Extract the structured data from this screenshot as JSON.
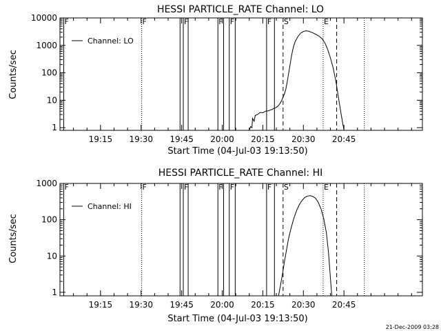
{
  "footer_timestamp": "21-Dec-2009 03:28",
  "chart_data": [
    {
      "type": "line",
      "title": "HESSI PARTICLE_RATE Channel: LO",
      "xlabel": "Start Time (04-Jul-03 19:13:50)",
      "ylabel": "Counts/sec",
      "y_scale": "log",
      "xlim": [
        -10,
        124
      ],
      "ylim": [
        0.8,
        10000
      ],
      "x_ticks": [
        {
          "v": 5,
          "label": "19:15"
        },
        {
          "v": 20,
          "label": "19:30"
        },
        {
          "v": 35,
          "label": "19:45"
        },
        {
          "v": 50,
          "label": "20:00"
        },
        {
          "v": 65,
          "label": "20:15"
        },
        {
          "v": 80,
          "label": "20:30"
        },
        {
          "v": 95,
          "label": "20:45"
        }
      ],
      "y_ticks": [
        {
          "v": 1,
          "label": "1"
        },
        {
          "v": 10,
          "label": "10"
        },
        {
          "v": 100,
          "label": "100"
        },
        {
          "v": 1000,
          "label": "1000"
        },
        {
          "v": 10000,
          "label": "10000"
        }
      ],
      "legend": {
        "position": "top-left",
        "entries": [
          "Channel: LO"
        ]
      },
      "markers": [
        {
          "x": -8.6,
          "style": "solid",
          "label": "F"
        },
        {
          "x": 20.2,
          "style": "dotted",
          "label": "F"
        },
        {
          "x": 34.4,
          "style": "solid",
          "label": ""
        },
        {
          "x": 35.6,
          "style": "solid",
          "label": "F"
        },
        {
          "x": 37.4,
          "style": "solid",
          "label": ""
        },
        {
          "x": 48.4,
          "style": "solid",
          "label": "F"
        },
        {
          "x": 50.5,
          "style": "solid",
          "label": ""
        },
        {
          "x": 52.6,
          "style": "solid",
          "label": "F"
        },
        {
          "x": 54.8,
          "style": "solid",
          "label": ""
        },
        {
          "x": 66.4,
          "style": "solid",
          "label": "F"
        },
        {
          "x": 69.3,
          "style": "solid",
          "label": ""
        },
        {
          "x": 72.5,
          "style": "dashed",
          "label": "S"
        },
        {
          "x": 87.3,
          "style": "dotted",
          "label": "E"
        },
        {
          "x": 92.3,
          "style": "dashed",
          "label": ""
        },
        {
          "x": 102.5,
          "style": "dotted",
          "label": ""
        }
      ],
      "series": [
        {
          "name": "Channel: LO",
          "x": [
            60,
            60.5,
            61,
            61.2,
            61.8,
            62.2,
            63,
            64,
            65,
            66,
            67,
            68,
            68.5,
            69,
            69.5,
            70,
            70.5,
            71,
            71.5,
            72,
            72.5,
            73,
            73.5,
            74,
            74.5,
            75,
            75.5,
            76,
            76.5,
            77,
            78,
            79,
            80,
            81,
            82,
            83,
            84,
            85,
            86,
            87,
            88,
            89,
            90,
            91,
            92,
            93,
            94,
            95
          ],
          "values": [
            0.8,
            1.1,
            1.0,
            2.2,
            1.7,
            2.8,
            3.0,
            3.6,
            3.5,
            4.0,
            4.1,
            4.5,
            4.6,
            5.0,
            5.2,
            5.5,
            6.0,
            6.8,
            8.0,
            10,
            13,
            17,
            25,
            45,
            90,
            180,
            350,
            650,
            1000,
            1400,
            2100,
            2800,
            3200,
            3400,
            3250,
            3000,
            2700,
            2400,
            2100,
            1700,
            1200,
            700,
            350,
            150,
            50,
            12,
            3,
            0.8
          ]
        }
      ]
    },
    {
      "type": "line",
      "title": "HESSI PARTICLE_RATE Channel: HI",
      "xlabel": "Start Time (04-Jul-03 19:13:50)",
      "ylabel": "Counts/sec",
      "y_scale": "log",
      "xlim": [
        -10,
        124
      ],
      "ylim": [
        0.8,
        1000
      ],
      "x_ticks": [
        {
          "v": 5,
          "label": "19:15"
        },
        {
          "v": 20,
          "label": "19:30"
        },
        {
          "v": 35,
          "label": "19:45"
        },
        {
          "v": 50,
          "label": "20:00"
        },
        {
          "v": 65,
          "label": "20:15"
        },
        {
          "v": 80,
          "label": "20:30"
        },
        {
          "v": 95,
          "label": "20:45"
        }
      ],
      "y_ticks": [
        {
          "v": 1,
          "label": "1"
        },
        {
          "v": 10,
          "label": "10"
        },
        {
          "v": 100,
          "label": "100"
        },
        {
          "v": 1000,
          "label": "1000"
        }
      ],
      "legend": {
        "position": "top-left",
        "entries": [
          "Channel: HI"
        ]
      },
      "markers": [
        {
          "x": -8.6,
          "style": "solid",
          "label": "F"
        },
        {
          "x": 20.2,
          "style": "dotted",
          "label": "F"
        },
        {
          "x": 34.4,
          "style": "solid",
          "label": ""
        },
        {
          "x": 35.6,
          "style": "solid",
          "label": "F"
        },
        {
          "x": 37.4,
          "style": "solid",
          "label": ""
        },
        {
          "x": 48.4,
          "style": "solid",
          "label": "F"
        },
        {
          "x": 50.5,
          "style": "solid",
          "label": ""
        },
        {
          "x": 52.6,
          "style": "solid",
          "label": "F"
        },
        {
          "x": 54.8,
          "style": "solid",
          "label": ""
        },
        {
          "x": 66.4,
          "style": "solid",
          "label": "F"
        },
        {
          "x": 69.3,
          "style": "solid",
          "label": ""
        },
        {
          "x": 72.5,
          "style": "dashed",
          "label": "S"
        },
        {
          "x": 87.3,
          "style": "dotted",
          "label": "E"
        },
        {
          "x": 92.3,
          "style": "dashed",
          "label": ""
        },
        {
          "x": 102.5,
          "style": "dotted",
          "label": ""
        }
      ],
      "series": [
        {
          "name": "Channel: HI",
          "x": [
            70.8,
            71.5,
            72.2,
            73,
            73.8,
            74.5,
            75.5,
            76.5,
            77.5,
            78.5,
            79.5,
            80.5,
            81.5,
            82.5,
            83.5,
            84.5,
            85.5,
            86.5,
            87.5,
            88.5,
            89.3,
            90,
            90.5
          ],
          "values": [
            0.8,
            1.5,
            3,
            7,
            15,
            30,
            60,
            110,
            180,
            260,
            340,
            410,
            450,
            460,
            440,
            390,
            300,
            200,
            110,
            45,
            12,
            2.5,
            0.8
          ]
        }
      ]
    }
  ]
}
